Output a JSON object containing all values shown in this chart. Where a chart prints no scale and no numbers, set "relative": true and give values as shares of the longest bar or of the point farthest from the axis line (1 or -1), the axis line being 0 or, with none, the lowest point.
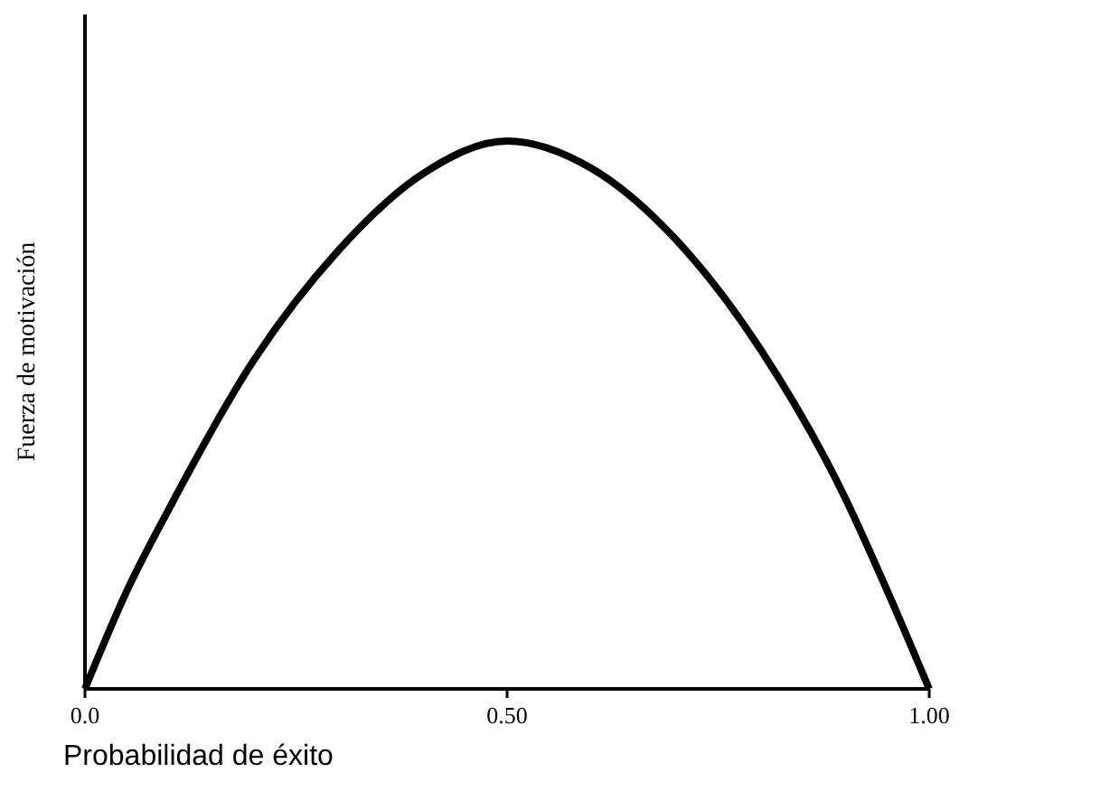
{
  "chart_data": {
    "type": "line",
    "relative": true,
    "xlabel": "Probabilidad de éxito",
    "ylabel": "Fuerza de motivación",
    "x": [
      0,
      0.05,
      0.1,
      0.2,
      0.3,
      0.4,
      0.5,
      0.6,
      0.7,
      0.8,
      0.9,
      0.95,
      1
    ],
    "series": [
      {
        "color": "#000000",
        "values": [
          0,
          0.18,
          0.33,
          0.6,
          0.8,
          0.94,
          1,
          0.95,
          0.82,
          0.62,
          0.35,
          0.18,
          0
        ]
      }
    ],
    "xlim": [
      0,
      1
    ],
    "xticks": [
      {
        "value": 0,
        "label": "0.0"
      },
      {
        "value": 0.5,
        "label": "0.50"
      },
      {
        "value": 1,
        "label": "1.00"
      }
    ],
    "marker": "none",
    "line_style": "solid"
  }
}
